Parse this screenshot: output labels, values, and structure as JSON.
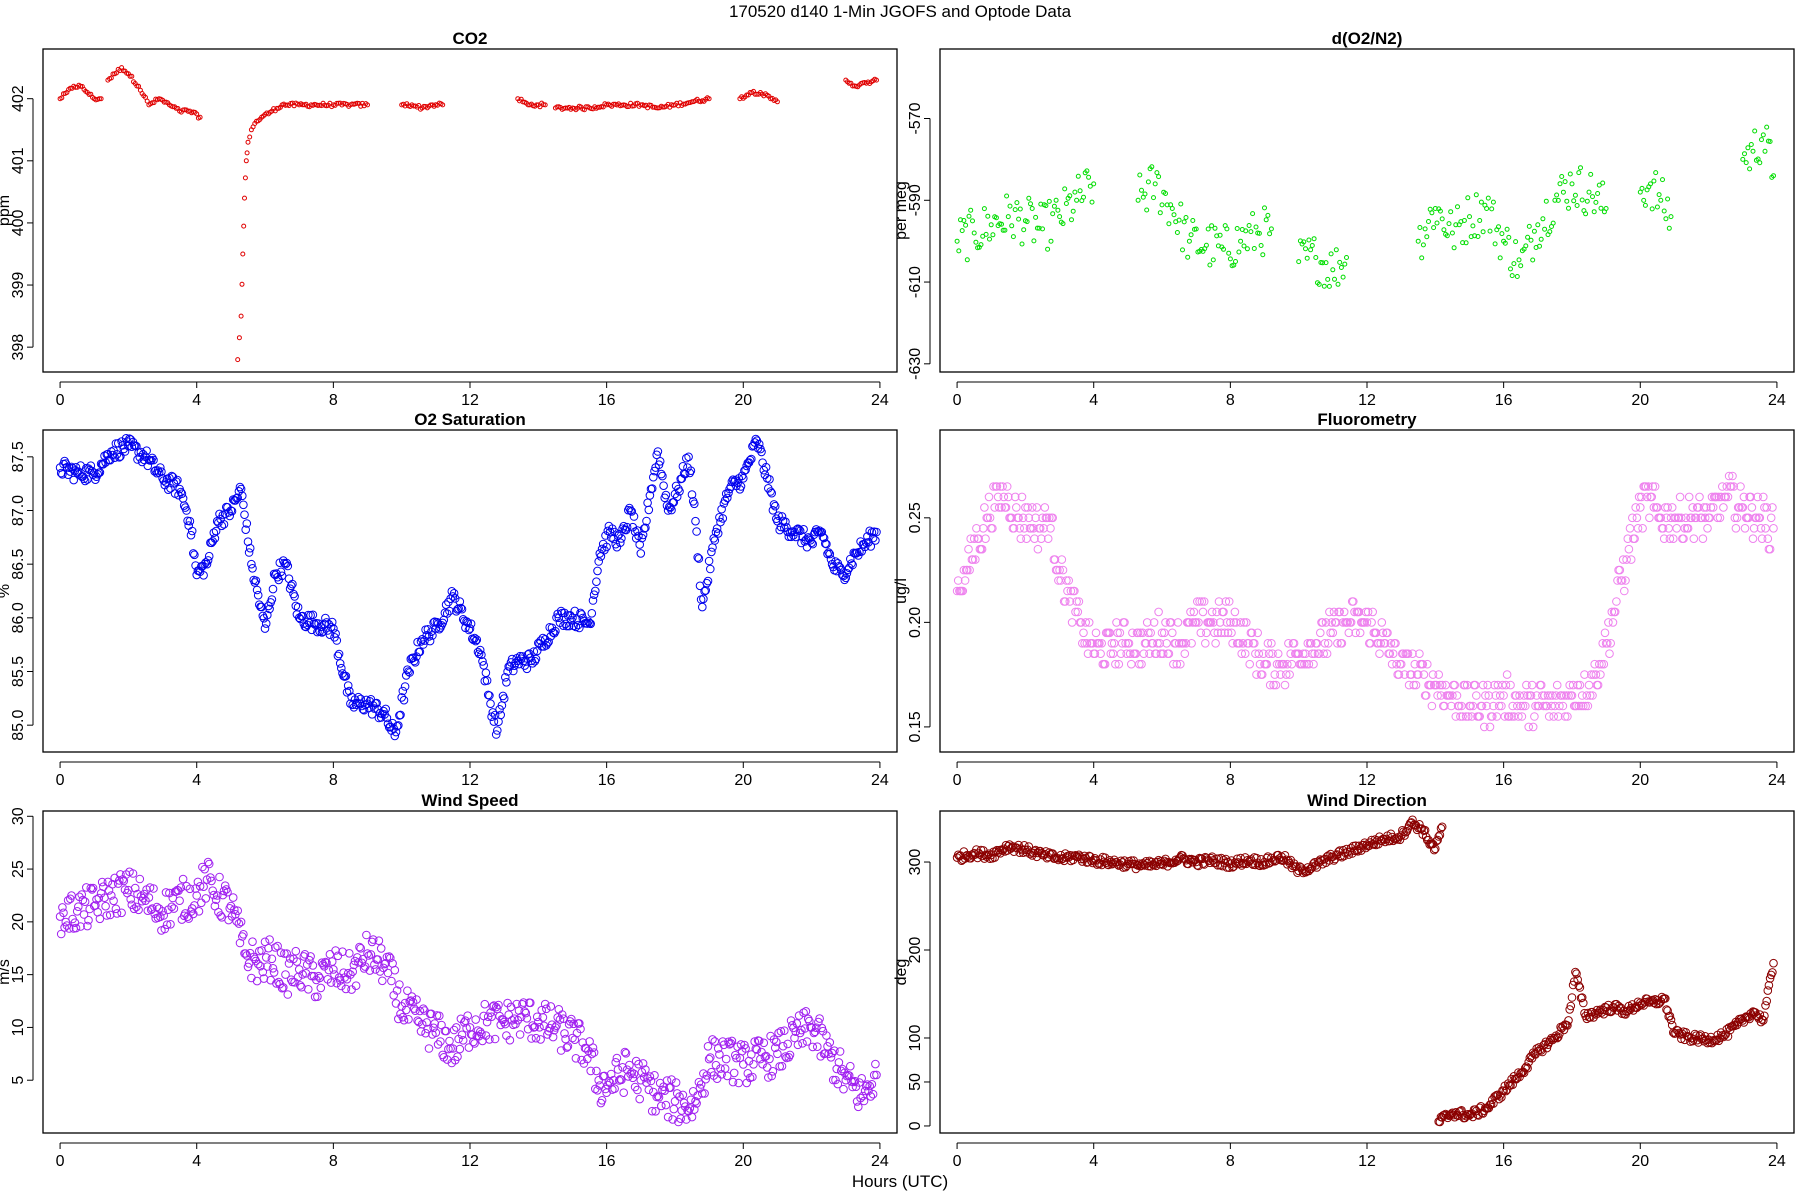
{
  "figure": {
    "title": "170520   d140   1-Min  JGOFS and Optode Data",
    "xlabel": "Hours (UTC)"
  },
  "chart_data": [
    {
      "id": "co2",
      "type": "scatter",
      "title": "CO2",
      "xlabel": "",
      "ylabel": "ppm",
      "xlim": [
        -0.5,
        24.5
      ],
      "ylim": [
        397.6,
        402.8
      ],
      "xticks": [
        0,
        4,
        8,
        12,
        16,
        20,
        24
      ],
      "yticks": [
        398,
        399,
        400,
        401,
        402
      ],
      "color": "#e00000",
      "marker_size": "small",
      "segments": [
        {
          "x": [
            0.0,
            0.2,
            0.4,
            0.6,
            0.8,
            1.0,
            1.2
          ],
          "y": [
            402.0,
            402.1,
            402.2,
            402.2,
            402.1,
            402.0,
            402.0
          ]
        },
        {
          "x": [
            1.4,
            1.6,
            1.8,
            2.0,
            2.3,
            2.6,
            2.9,
            3.2,
            3.5,
            3.8,
            4.1
          ],
          "y": [
            402.3,
            402.4,
            402.5,
            402.4,
            402.2,
            401.9,
            402.0,
            401.9,
            401.8,
            401.8,
            401.7
          ]
        },
        {
          "x": [
            5.2,
            5.3,
            5.35,
            5.4,
            5.45,
            5.5,
            5.6,
            5.7,
            5.9,
            6.2,
            6.5,
            7.0,
            7.5,
            8.0,
            8.5,
            9.0
          ],
          "y": [
            397.8,
            398.5,
            399.5,
            400.4,
            401.0,
            401.3,
            401.5,
            401.6,
            401.7,
            401.8,
            401.9,
            401.9,
            401.9,
            401.9,
            401.9,
            401.9
          ]
        },
        {
          "x": [
            10.0,
            10.3,
            10.6,
            10.9,
            11.2
          ],
          "y": [
            401.9,
            401.9,
            401.85,
            401.9,
            401.9
          ]
        },
        {
          "x": [
            13.4,
            13.7,
            14.0,
            14.2
          ],
          "y": [
            402.0,
            401.9,
            401.9,
            401.9
          ]
        },
        {
          "x": [
            14.5,
            15.0,
            15.5,
            16.0,
            16.5,
            17.0,
            17.5,
            18.0,
            18.5,
            19.0
          ],
          "y": [
            401.85,
            401.85,
            401.85,
            401.9,
            401.9,
            401.9,
            401.85,
            401.9,
            401.95,
            402.0
          ]
        },
        {
          "x": [
            19.9,
            20.2,
            20.5,
            20.8,
            21.0
          ],
          "y": [
            402.0,
            402.1,
            402.1,
            402.0,
            401.95
          ]
        },
        {
          "x": [
            23.0,
            23.3,
            23.6,
            23.9
          ],
          "y": [
            402.3,
            402.2,
            402.25,
            402.3
          ]
        }
      ]
    },
    {
      "id": "o2n2",
      "type": "scatter",
      "title": "d(O2/N2)",
      "xlabel": "",
      "ylabel": "per meg",
      "xlim": [
        -0.5,
        24.5
      ],
      "ylim": [
        -632,
        -553
      ],
      "xticks": [
        0,
        4,
        8,
        12,
        16,
        20,
        24
      ],
      "yticks": [
        -570,
        -590,
        -610,
        -630
      ],
      "color": "#00dd00",
      "marker_size": "small",
      "spread": 6,
      "segments": [
        {
          "x": [
            0.0,
            0.5,
            1.0,
            1.5,
            2.0,
            2.5,
            3.0,
            3.5,
            4.0
          ],
          "y": [
            -600,
            -598,
            -596,
            -594,
            -595,
            -597,
            -594,
            -590,
            -586
          ]
        },
        {
          "x": [
            5.3,
            5.8,
            6.3,
            6.8,
            7.3,
            7.8,
            8.3,
            8.8,
            9.2
          ],
          "y": [
            -590,
            -586,
            -592,
            -600,
            -601,
            -602,
            -600,
            -598,
            -597
          ]
        },
        {
          "x": [
            10.0,
            10.5,
            11.0,
            11.4
          ],
          "y": [
            -605,
            -604,
            -607,
            -604
          ]
        },
        {
          "x": [
            13.5,
            14.0,
            14.5,
            15.0,
            15.5,
            16.0,
            16.5,
            17.0,
            17.5,
            18.0,
            18.5,
            19.0
          ],
          "y": [
            -600,
            -592,
            -598,
            -594,
            -592,
            -600,
            -606,
            -596,
            -590,
            -586,
            -588,
            -592
          ]
        },
        {
          "x": [
            20.0,
            20.3,
            20.6,
            20.9
          ],
          "y": [
            -588,
            -586,
            -590,
            -594
          ]
        },
        {
          "x": [
            23.0,
            23.3,
            23.6,
            23.9
          ],
          "y": [
            -580,
            -578,
            -574,
            -584
          ]
        }
      ]
    },
    {
      "id": "o2sat",
      "type": "scatter",
      "title": "O2 Saturation",
      "xlabel": "",
      "ylabel": "%",
      "xlim": [
        -0.5,
        24.5
      ],
      "ylim": [
        84.75,
        87.75
      ],
      "xticks": [
        0,
        4,
        8,
        12,
        16,
        20,
        24
      ],
      "yticks": [
        85.0,
        85.5,
        86.0,
        86.5,
        87.0,
        87.5
      ],
      "ytick_labels": [
        "85.0",
        "85.5",
        "86.0",
        "86.5",
        "87.0",
        "87.5"
      ],
      "color": "#0000ee",
      "marker_size": "large",
      "spread": 0.08,
      "segments": [
        {
          "x": [
            0.0,
            0.5,
            1.0,
            1.5,
            2.0,
            2.5,
            3.0,
            3.5,
            3.8,
            4.0,
            4.3,
            4.6,
            5.0,
            5.3,
            5.6,
            6.0,
            6.3,
            6.6,
            7.0,
            7.5,
            8.0,
            8.5,
            9.0,
            9.5,
            9.8,
            10.2,
            10.6,
            11.0,
            11.5,
            12.0,
            12.3,
            12.6,
            12.8,
            13.1,
            13.4,
            13.8,
            14.2,
            14.6,
            15.0,
            15.5,
            15.8,
            16.1,
            16.4,
            16.7,
            17.0,
            17.3,
            17.5,
            17.8,
            18.1,
            18.4,
            18.6,
            18.8,
            19.2,
            19.6,
            20.0,
            20.4,
            20.7,
            21.0,
            21.5,
            22.0,
            22.3,
            22.6,
            22.9,
            23.3,
            23.6,
            23.9
          ],
          "y": [
            87.4,
            87.35,
            87.35,
            87.55,
            87.6,
            87.5,
            87.3,
            87.2,
            86.9,
            86.4,
            86.5,
            86.9,
            87.0,
            87.2,
            86.5,
            85.9,
            86.4,
            86.5,
            86.0,
            85.95,
            85.9,
            85.2,
            85.2,
            85.1,
            84.9,
            85.5,
            85.8,
            85.9,
            86.2,
            85.9,
            85.7,
            85.2,
            84.95,
            85.5,
            85.6,
            85.6,
            85.8,
            86.0,
            86.0,
            85.95,
            86.6,
            86.8,
            86.7,
            87.0,
            86.6,
            87.2,
            87.55,
            87.0,
            87.2,
            87.5,
            86.9,
            86.1,
            86.8,
            87.2,
            87.3,
            87.65,
            87.3,
            86.9,
            86.8,
            86.7,
            86.8,
            86.5,
            86.4,
            86.6,
            86.7,
            86.8
          ]
        }
      ]
    },
    {
      "id": "fluor",
      "type": "scatter",
      "title": "Fluorometry",
      "xlabel": "",
      "ylabel": "ug/l",
      "xlim": [
        -0.5,
        24.5
      ],
      "ylim": [
        0.138,
        0.292
      ],
      "xticks": [
        0,
        4,
        8,
        12,
        16,
        20,
        24
      ],
      "yticks": [
        0.15,
        0.2,
        0.25
      ],
      "ytick_labels": [
        "0.15",
        "0.20",
        "0.25"
      ],
      "color": "#ee82ee",
      "marker_size": "large",
      "spread": 0.01,
      "quantum": 0.005,
      "segments": [
        {
          "x": [
            0.0,
            0.3,
            0.6,
            0.9,
            1.2,
            1.5,
            1.8,
            2.1,
            2.4,
            2.7,
            3.0,
            3.3,
            3.6,
            3.9,
            4.2,
            4.6,
            5.0,
            5.5,
            6.0,
            6.5,
            7.0,
            7.5,
            8.0,
            8.5,
            9.0,
            9.5,
            10.0,
            10.5,
            11.0,
            11.5,
            12.0,
            12.5,
            13.0,
            13.5,
            14.0,
            14.5,
            15.0,
            15.5,
            16.0,
            16.5,
            17.0,
            17.5,
            18.0,
            18.5,
            18.8,
            19.0,
            19.3,
            19.6,
            19.9,
            20.2,
            20.6,
            21.0,
            21.5,
            22.0,
            22.5,
            23.0,
            23.5,
            23.9
          ],
          "y": [
            0.215,
            0.225,
            0.24,
            0.25,
            0.26,
            0.26,
            0.25,
            0.25,
            0.245,
            0.25,
            0.225,
            0.21,
            0.2,
            0.19,
            0.185,
            0.19,
            0.19,
            0.19,
            0.195,
            0.19,
            0.2,
            0.2,
            0.2,
            0.19,
            0.18,
            0.18,
            0.185,
            0.19,
            0.195,
            0.2,
            0.2,
            0.19,
            0.18,
            0.175,
            0.17,
            0.165,
            0.16,
            0.16,
            0.165,
            0.16,
            0.16,
            0.16,
            0.165,
            0.17,
            0.18,
            0.19,
            0.21,
            0.23,
            0.25,
            0.26,
            0.25,
            0.25,
            0.25,
            0.25,
            0.26,
            0.255,
            0.25,
            0.245
          ]
        }
      ]
    },
    {
      "id": "wspd",
      "type": "scatter",
      "title": "Wind Speed",
      "xlabel": "",
      "ylabel": "m/s",
      "xlim": [
        -0.5,
        24.5
      ],
      "ylim": [
        0,
        30.5
      ],
      "xticks": [
        0,
        4,
        8,
        12,
        16,
        20,
        24
      ],
      "yticks": [
        5,
        10,
        15,
        20,
        25,
        30
      ],
      "color": "#a020f0",
      "marker_size": "large",
      "spread": 2.0,
      "segments": [
        {
          "x": [
            0.0,
            0.5,
            1.0,
            1.5,
            2.0,
            2.5,
            3.0,
            3.5,
            4.0,
            4.3,
            4.6,
            5.0,
            5.4,
            5.8,
            6.2,
            6.6,
            7.0,
            7.5,
            8.0,
            8.5,
            9.0,
            9.5,
            10.0,
            10.5,
            11.0,
            11.5,
            12.0,
            12.5,
            13.0,
            13.5,
            14.0,
            14.5,
            15.0,
            15.4,
            15.8,
            16.2,
            16.6,
            17.0,
            17.5,
            18.0,
            18.3,
            18.6,
            19.0,
            19.5,
            20.0,
            20.5,
            21.0,
            21.5,
            22.0,
            22.5,
            23.0,
            23.5,
            23.9
          ],
          "y": [
            20.5,
            21,
            21.5,
            22.5,
            23,
            22,
            21,
            22,
            22.5,
            24,
            22.5,
            21.5,
            17,
            16,
            16.5,
            15,
            15.5,
            14.5,
            15.5,
            15,
            17,
            16,
            12,
            10.5,
            9.5,
            8,
            10,
            10.5,
            10.5,
            11,
            10.5,
            10,
            9,
            8,
            4.5,
            5,
            6,
            5,
            3.5,
            3,
            2.5,
            3,
            7,
            7,
            6.5,
            7,
            7.5,
            9,
            10,
            7.5,
            5,
            3.5,
            5.5
          ]
        }
      ]
    },
    {
      "id": "wdir",
      "type": "scatter",
      "title": "Wind Direction",
      "xlabel": "",
      "ylabel": "deg",
      "xlim": [
        -0.5,
        24.5
      ],
      "ylim": [
        -8,
        358
      ],
      "xticks": [
        0,
        4,
        8,
        12,
        16,
        20,
        24
      ],
      "yticks": [
        0,
        50,
        100,
        200,
        300
      ],
      "color": "#8b0000",
      "marker_size": "large",
      "spread": 5,
      "segments": [
        {
          "x": [
            0.0,
            0.5,
            1.0,
            1.5,
            2.0,
            2.5,
            3.0,
            3.5,
            4.0,
            4.5,
            5.0,
            5.5,
            6.0,
            6.5,
            7.0,
            7.5,
            8.0,
            8.5,
            9.0,
            9.5,
            10.0,
            10.5,
            11.0,
            11.5,
            12.0,
            12.5,
            13.0,
            13.3,
            13.6,
            13.8,
            14.0,
            14.2
          ],
          "y": [
            305,
            310,
            308,
            318,
            314,
            308,
            304,
            306,
            302,
            300,
            298,
            296,
            298,
            304,
            300,
            302,
            298,
            302,
            300,
            306,
            290,
            296,
            306,
            312,
            320,
            326,
            330,
            345,
            338,
            325,
            315,
            340
          ]
        },
        {
          "x": [
            14.1,
            14.5,
            15.0,
            15.5,
            16.0,
            16.5,
            17.0,
            17.5,
            17.9,
            18.1,
            18.4,
            18.8,
            19.2,
            19.6,
            20.0,
            20.4,
            20.7,
            21.0,
            21.5,
            22.0,
            22.5,
            23.0,
            23.3,
            23.6,
            23.9
          ],
          "y": [
            5,
            15,
            12,
            20,
            40,
            60,
            85,
            100,
            120,
            175,
            125,
            130,
            135,
            130,
            140,
            140,
            145,
            105,
            100,
            98,
            104,
            120,
            130,
            120,
            185
          ]
        }
      ]
    }
  ]
}
